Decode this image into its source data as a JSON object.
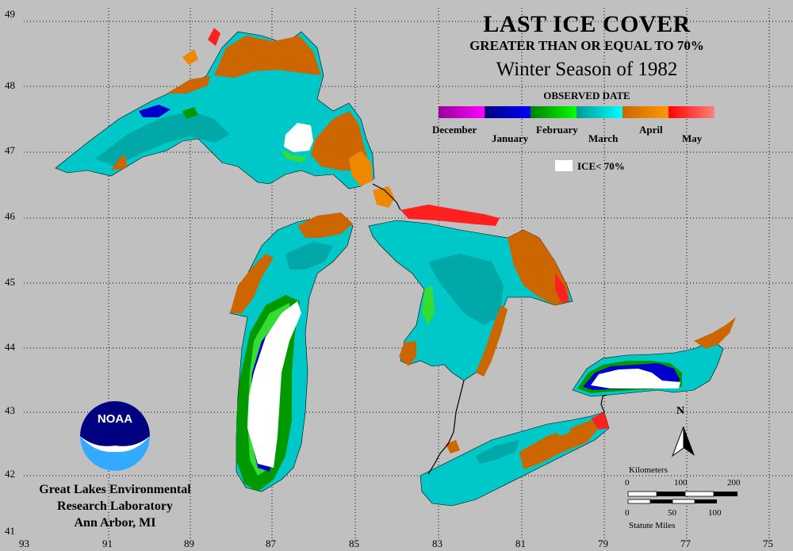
{
  "title": {
    "line1": "LAST ICE COVER",
    "line2": "GREATER THAN OR EQUAL TO 70%",
    "line3": "Winter Season of 1982"
  },
  "legend": {
    "heading": "OBSERVED DATE",
    "months": [
      "December",
      "January",
      "February",
      "March",
      "April",
      "May"
    ],
    "swatch_colors": [
      [
        "#990099",
        "#ff00ff"
      ],
      [
        "#000080",
        "#0000ff"
      ],
      [
        "#008000",
        "#00ff00"
      ],
      [
        "#009999",
        "#00ffff"
      ],
      [
        "#cc6600",
        "#ff9900"
      ],
      [
        "#ff0000",
        "#ff8080"
      ]
    ],
    "ice_label": "ICE< 70%"
  },
  "latitudes": [
    "49",
    "48",
    "47",
    "46",
    "45",
    "44",
    "43",
    "42",
    "41"
  ],
  "longitudes": [
    "93",
    "91",
    "89",
    "87",
    "85",
    "83",
    "81",
    "79",
    "77",
    "75"
  ],
  "scale": {
    "km_label": "Kilometers",
    "km_ticks": [
      "0",
      "100",
      "200"
    ],
    "mi_ticks": [
      "0",
      "50",
      "100"
    ],
    "mi_label": "Statute Miles"
  },
  "north_label": "N",
  "logo_text": "NOAA",
  "credit": [
    "Great Lakes Environmental",
    "Research Laboratory",
    "Ann Arbor, MI"
  ],
  "colors": {
    "background": "#c0c0c0",
    "march": "#00d0d0",
    "march_dark": "#00a8a8",
    "april": "#cc6600",
    "april_light": "#ee8800",
    "may": "#ff2020",
    "february": "#009900",
    "february_light": "#33dd33",
    "january": "#0000cc",
    "ice_lt_70": "#ffffff"
  }
}
